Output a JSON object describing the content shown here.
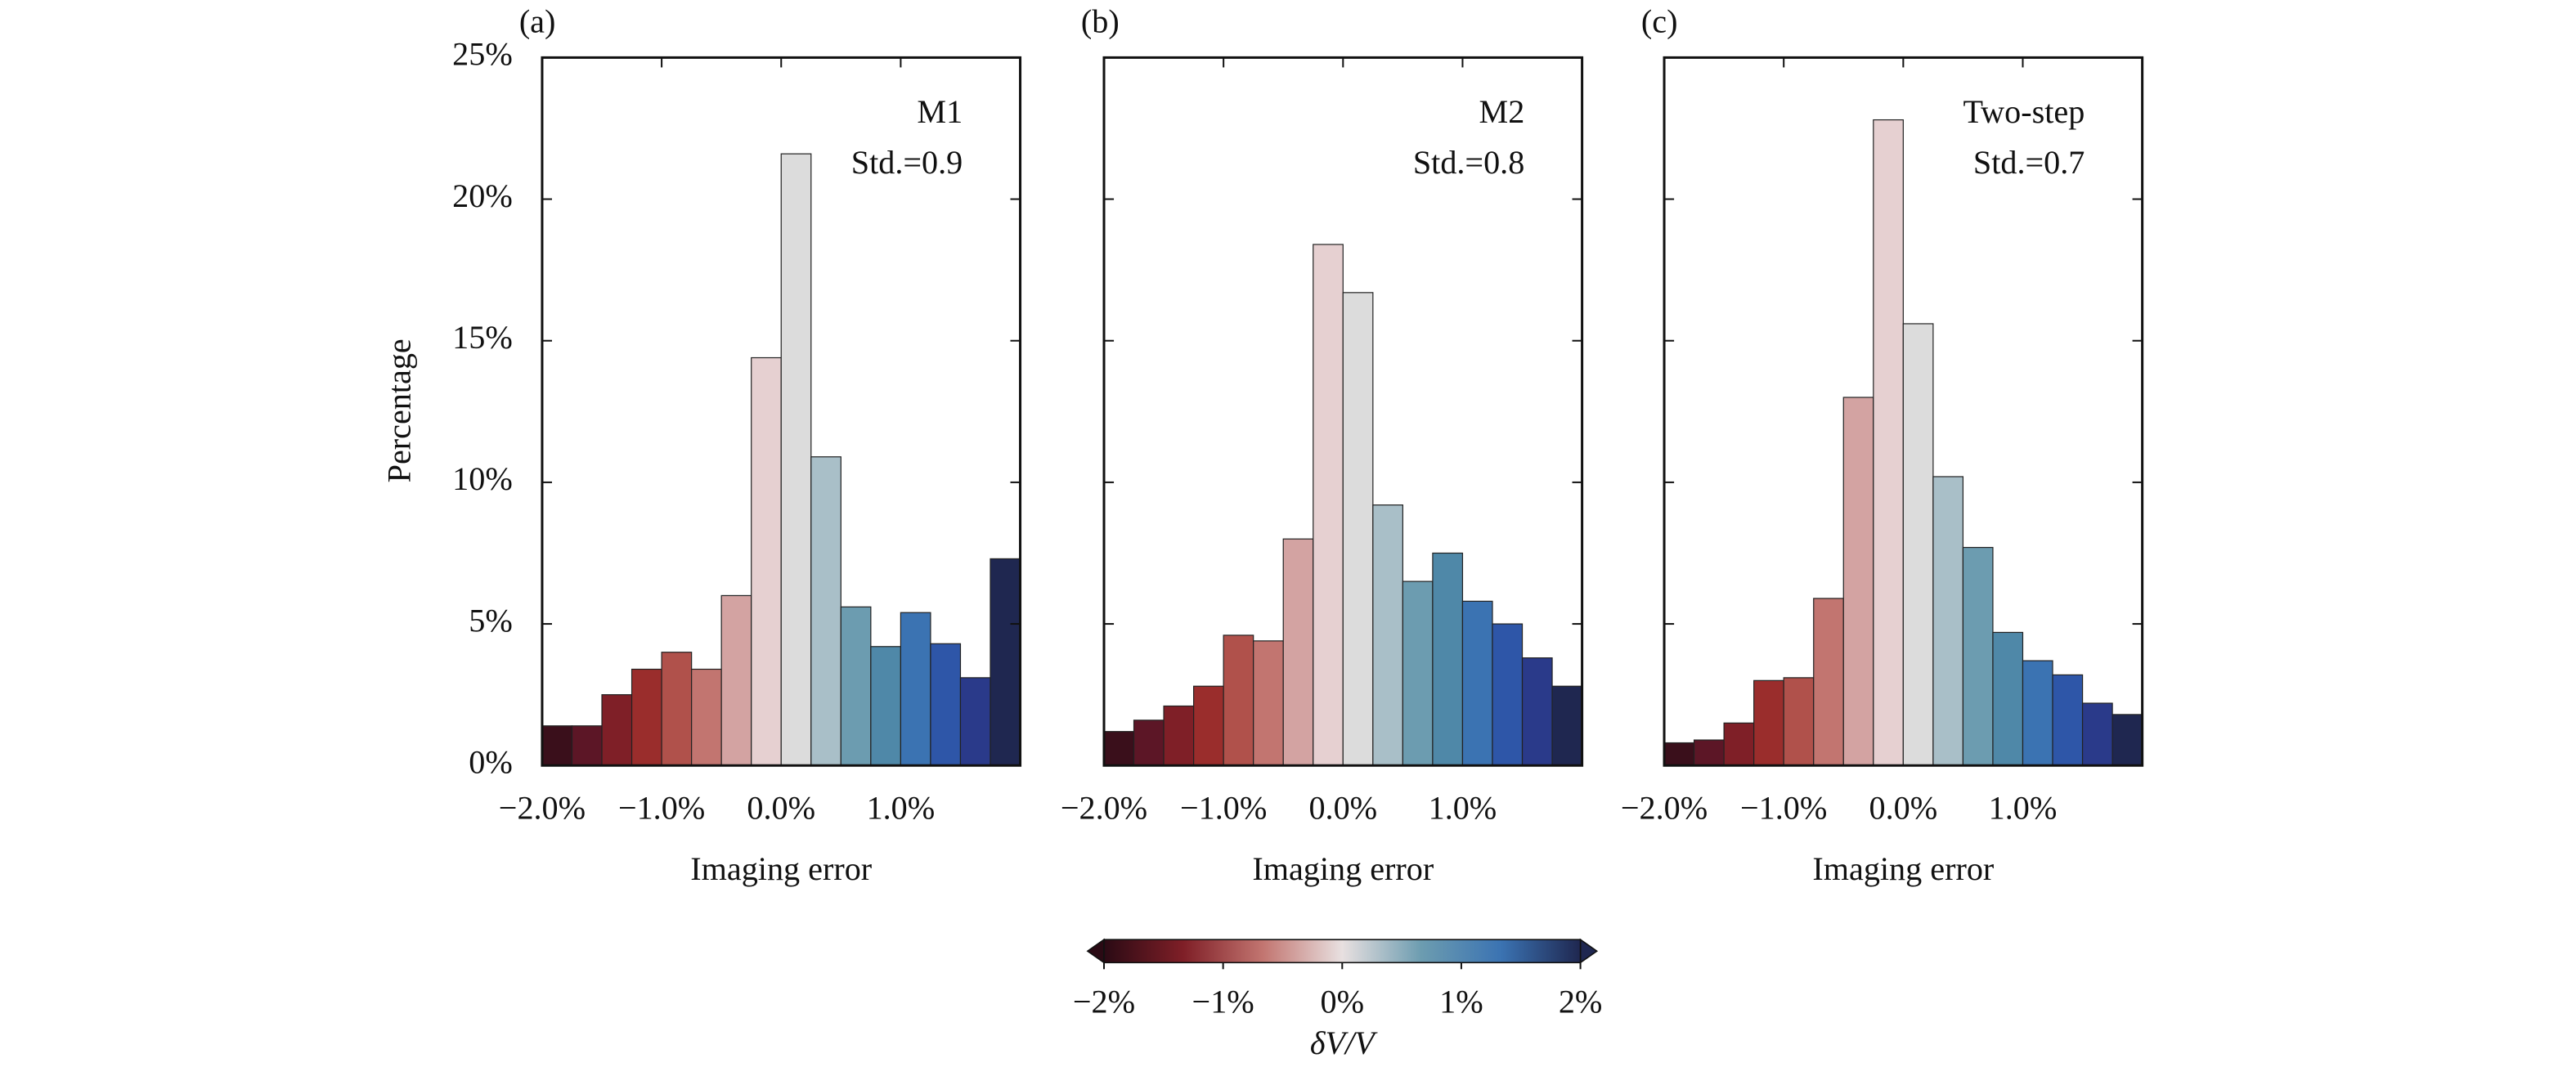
{
  "chart_data": [
    {
      "type": "histogram",
      "panel_label": "(a)",
      "annotations": [
        "M1",
        "Std.=0.9"
      ],
      "xlabel": "Imaging error",
      "ylabel": "Percentage",
      "bins": [
        -2,
        -1.75,
        -1.5,
        -1.25,
        -1,
        -0.75,
        -0.5,
        -0.25,
        0,
        0.25,
        0.5,
        0.75,
        1,
        1.25,
        1.5,
        1.75,
        2
      ],
      "values": [
        1.4,
        1.4,
        2.5,
        3.4,
        4.0,
        3.4,
        6.0,
        14.4,
        21.6,
        10.9,
        5.6,
        4.2,
        5.4,
        4.3,
        3.1,
        7.3
      ],
      "colors": [
        "#3a0f1b",
        "#5c1626",
        "#7f1f27",
        "#9a2d2c",
        "#b0514b",
        "#c27570",
        "#d3a3a2",
        "#e6d0d1",
        "#dcdcdc",
        "#a9bfc8",
        "#6c9cb0",
        "#4f88a8",
        "#3b73b2",
        "#2e56a8",
        "#2a3a8a",
        "#1f2750"
      ],
      "xlim": [
        -2,
        2
      ],
      "ylim": [
        0,
        25
      ],
      "xticks": [
        {
          "value": -2,
          "label": "−2.0%"
        },
        {
          "value": -1,
          "label": "−1.0%"
        },
        {
          "value": 0,
          "label": "0.0%"
        },
        {
          "value": 1,
          "label": "1.0%"
        }
      ],
      "yticks": [
        {
          "value": 0,
          "label": "0%"
        },
        {
          "value": 5,
          "label": "5%"
        },
        {
          "value": 10,
          "label": "10%"
        },
        {
          "value": 15,
          "label": "15%"
        },
        {
          "value": 20,
          "label": "20%"
        },
        {
          "value": 25,
          "label": "25%"
        }
      ]
    },
    {
      "type": "histogram",
      "panel_label": "(b)",
      "annotations": [
        "M2",
        "Std.=0.8"
      ],
      "xlabel": "Imaging error",
      "bins": [
        -2,
        -1.75,
        -1.5,
        -1.25,
        -1,
        -0.75,
        -0.5,
        -0.25,
        0,
        0.25,
        0.5,
        0.75,
        1,
        1.25,
        1.5,
        1.75,
        2
      ],
      "values": [
        1.2,
        1.6,
        2.1,
        2.8,
        4.6,
        4.4,
        8.0,
        18.4,
        16.7,
        9.2,
        6.5,
        7.5,
        5.8,
        5.0,
        3.8,
        2.8
      ],
      "colors": [
        "#3a0f1b",
        "#5c1626",
        "#7f1f27",
        "#9a2d2c",
        "#b0514b",
        "#c27570",
        "#d3a3a2",
        "#e6d0d1",
        "#dcdcdc",
        "#a9bfc8",
        "#6c9cb0",
        "#4f88a8",
        "#3b73b2",
        "#2e56a8",
        "#2a3a8a",
        "#1f2750"
      ],
      "xlim": [
        -2,
        2
      ],
      "ylim": [
        0,
        25
      ],
      "xticks": [
        {
          "value": -2,
          "label": "−2.0%"
        },
        {
          "value": -1,
          "label": "−1.0%"
        },
        {
          "value": 0,
          "label": "0.0%"
        },
        {
          "value": 1,
          "label": "1.0%"
        }
      ],
      "yticks": [
        0,
        5,
        10,
        15,
        20,
        25
      ]
    },
    {
      "type": "histogram",
      "panel_label": "(c)",
      "annotations": [
        "Two-step",
        "Std.=0.7"
      ],
      "xlabel": "Imaging error",
      "bins": [
        -2,
        -1.75,
        -1.5,
        -1.25,
        -1,
        -0.75,
        -0.5,
        -0.25,
        0,
        0.25,
        0.5,
        0.75,
        1,
        1.25,
        1.5,
        1.75,
        2
      ],
      "values": [
        0.8,
        0.9,
        1.5,
        3.0,
        3.1,
        5.9,
        13.0,
        22.8,
        15.6,
        10.2,
        7.7,
        4.7,
        3.7,
        3.2,
        2.2,
        1.8
      ],
      "colors": [
        "#3a0f1b",
        "#5c1626",
        "#7f1f27",
        "#9a2d2c",
        "#b0514b",
        "#c27570",
        "#d3a3a2",
        "#e6d0d1",
        "#dcdcdc",
        "#a9bfc8",
        "#6c9cb0",
        "#4f88a8",
        "#3b73b2",
        "#2e56a8",
        "#2a3a8a",
        "#1f2750"
      ],
      "xlim": [
        -2,
        2
      ],
      "ylim": [
        0,
        25
      ],
      "xticks": [
        {
          "value": -2,
          "label": "−2.0%"
        },
        {
          "value": -1,
          "label": "−1.0%"
        },
        {
          "value": 0,
          "label": "0.0%"
        },
        {
          "value": 1,
          "label": "1.0%"
        }
      ],
      "yticks": [
        0,
        5,
        10,
        15,
        20,
        25
      ]
    },
    {
      "type": "colorbar",
      "xlabel": "δV/V",
      "colors": [
        "#2a0a14",
        "#7f1f27",
        "#c27570",
        "#e8e0e0",
        "#6c9cb0",
        "#3b73b2",
        "#1f2750"
      ],
      "xlim": [
        -2,
        2
      ],
      "xticks": [
        {
          "value": -2,
          "label": "−2%"
        },
        {
          "value": -1,
          "label": "−1%"
        },
        {
          "value": 0,
          "label": "0%"
        },
        {
          "value": 1,
          "label": "1%"
        },
        {
          "value": 2,
          "label": "2%"
        }
      ]
    }
  ]
}
